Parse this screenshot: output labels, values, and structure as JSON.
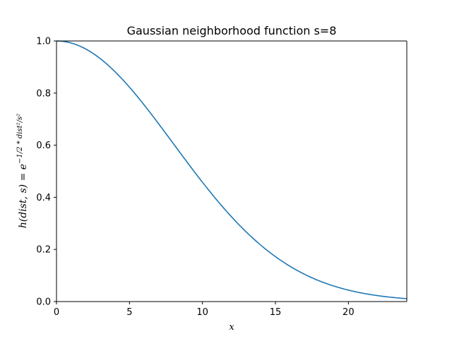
{
  "chart_data": {
    "type": "line",
    "title": "Gaussian neighborhood function s=8",
    "xlabel": "x",
    "ylabel": "h(dist, s) = e^{-1/2 * dist²/s²}",
    "ylabel_parts": {
      "main": "h(dist, s) = e",
      "exponent": "−1/2 * dist²/s²"
    },
    "xlim": [
      0,
      24
    ],
    "ylim": [
      0,
      1.0
    ],
    "x_ticks": [
      0,
      5,
      10,
      15,
      20
    ],
    "x_tick_labels": [
      "0",
      "5",
      "10",
      "15",
      "20"
    ],
    "y_ticks": [
      0.0,
      0.2,
      0.4,
      0.6,
      0.8,
      1.0
    ],
    "y_tick_labels": [
      "0.0",
      "0.2",
      "0.4",
      "0.6",
      "0.8",
      "1.0"
    ],
    "grid": false,
    "series": [
      {
        "color": "#1f77b4",
        "function": "exp(-0.5 * x^2 / s^2)",
        "s": 8,
        "x": [
          0,
          1,
          2,
          3,
          4,
          5,
          6,
          7,
          8,
          9,
          10,
          11,
          12,
          13,
          14,
          15,
          16,
          17,
          18,
          19,
          20,
          21,
          22,
          23,
          24
        ],
        "y": [
          1.0,
          0.9922,
          0.9692,
          0.9321,
          0.8825,
          0.8226,
          0.7548,
          0.6819,
          0.6065,
          0.5311,
          0.4578,
          0.3886,
          0.3247,
          0.2671,
          0.2163,
          0.1724,
          0.1353,
          0.1045,
          0.0796,
          0.0596,
          0.0439,
          0.0319,
          0.0228,
          0.016,
          0.0111
        ]
      }
    ]
  }
}
